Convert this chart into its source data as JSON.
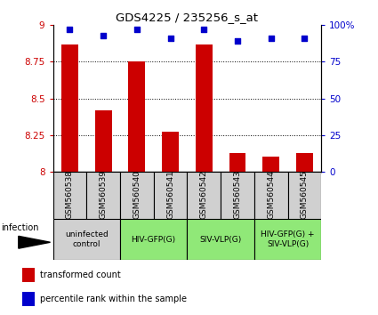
{
  "title": "GDS4225 / 235256_s_at",
  "samples": [
    "GSM560538",
    "GSM560539",
    "GSM560540",
    "GSM560541",
    "GSM560542",
    "GSM560543",
    "GSM560544",
    "GSM560545"
  ],
  "red_values": [
    8.87,
    8.42,
    8.75,
    8.27,
    8.87,
    8.13,
    8.1,
    8.13
  ],
  "blue_values": [
    97,
    93,
    97,
    91,
    97,
    89,
    91,
    91
  ],
  "ylim_left": [
    8.0,
    9.0
  ],
  "ylim_right": [
    0,
    100
  ],
  "yticks_left": [
    8.0,
    8.25,
    8.5,
    8.75,
    9.0
  ],
  "yticks_right": [
    0,
    25,
    50,
    75,
    100
  ],
  "ytick_labels_left": [
    "8",
    "8.25",
    "8.5",
    "8.75",
    "9"
  ],
  "ytick_labels_right": [
    "0",
    "25",
    "50",
    "75",
    "100%"
  ],
  "groups": [
    {
      "label": "uninfected\ncontrol",
      "indices": [
        0,
        1
      ],
      "color": "#d0d0d0"
    },
    {
      "label": "HIV-GFP(G)",
      "indices": [
        2,
        3
      ],
      "color": "#b0e8a0"
    },
    {
      "label": "SIV-VLP(G)",
      "indices": [
        4,
        5
      ],
      "color": "#b0e8a0"
    },
    {
      "label": "HIV-GFP(G) +\nSIV-VLP(G)",
      "indices": [
        6,
        7
      ],
      "color": "#b0e8a0"
    }
  ],
  "bar_color": "#cc0000",
  "dot_color": "#0000cc",
  "bar_width": 0.5,
  "infection_label": "infection",
  "legend_items": [
    {
      "color": "#cc0000",
      "label": "transformed count"
    },
    {
      "color": "#0000cc",
      "label": "percentile rank within the sample"
    }
  ],
  "background_color": "#ffffff",
  "sample_bg_color": "#d0d0d0",
  "group_bg_color_uninfected": "#d0d0d0",
  "group_bg_color_infected": "#90e878"
}
